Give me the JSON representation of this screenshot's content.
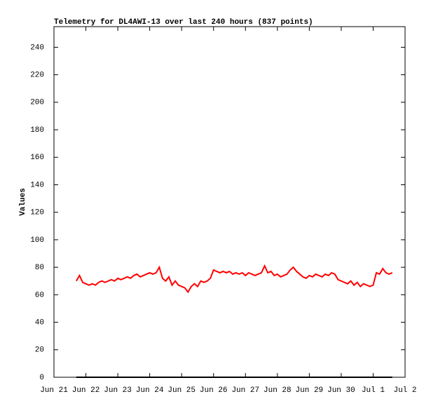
{
  "chart_data": {
    "type": "line",
    "title": "Telemetry for DL4AWI-13 over last 240 hours (837 points)",
    "y_label": "Values",
    "xlim": [
      0,
      11
    ],
    "ylim": [
      0,
      255
    ],
    "xticks": [
      {
        "value": 0,
        "label": "Jun 21"
      },
      {
        "value": 1,
        "label": "Jun 22"
      },
      {
        "value": 2,
        "label": "Jun 23"
      },
      {
        "value": 3,
        "label": "Jun 24"
      },
      {
        "value": 4,
        "label": "Jun 25"
      },
      {
        "value": 5,
        "label": "Jun 26"
      },
      {
        "value": 6,
        "label": "Jun 27"
      },
      {
        "value": 7,
        "label": "Jun 28"
      },
      {
        "value": 8,
        "label": "Jun 29"
      },
      {
        "value": 9,
        "label": "Jun 30"
      },
      {
        "value": 10,
        "label": "Jul 1"
      },
      {
        "value": 11,
        "label": "Jul 2"
      }
    ],
    "yticks": [
      0,
      20,
      40,
      60,
      80,
      100,
      120,
      140,
      160,
      180,
      200,
      220,
      240
    ],
    "grid": false,
    "series": [
      {
        "color": "#ff0000",
        "x": [
          0.7,
          0.8,
          0.9,
          1.0,
          1.1,
          1.2,
          1.3,
          1.4,
          1.5,
          1.6,
          1.7,
          1.8,
          1.9,
          2.0,
          2.1,
          2.2,
          2.3,
          2.4,
          2.5,
          2.6,
          2.7,
          2.8,
          2.9,
          3.0,
          3.1,
          3.2,
          3.3,
          3.4,
          3.5,
          3.6,
          3.7,
          3.8,
          3.9,
          4.0,
          4.1,
          4.2,
          4.3,
          4.4,
          4.5,
          4.6,
          4.7,
          4.8,
          4.9,
          5.0,
          5.1,
          5.2,
          5.3,
          5.4,
          5.5,
          5.6,
          5.7,
          5.8,
          5.9,
          6.0,
          6.1,
          6.2,
          6.3,
          6.4,
          6.5,
          6.6,
          6.7,
          6.8,
          6.9,
          7.0,
          7.1,
          7.2,
          7.3,
          7.4,
          7.5,
          7.6,
          7.7,
          7.8,
          7.9,
          8.0,
          8.1,
          8.2,
          8.3,
          8.4,
          8.5,
          8.6,
          8.7,
          8.8,
          8.9,
          9.0,
          9.1,
          9.2,
          9.3,
          9.4,
          9.5,
          9.6,
          9.7,
          9.8,
          9.9,
          10.0,
          10.1,
          10.2,
          10.3,
          10.4,
          10.5,
          10.6
        ],
        "values": [
          70,
          74,
          69,
          68,
          67,
          68,
          67,
          69,
          70,
          69,
          70,
          71,
          70,
          72,
          71,
          72,
          73,
          72,
          74,
          75,
          73,
          74,
          75,
          76,
          75,
          76,
          80,
          72,
          70,
          73,
          67,
          70,
          67,
          66,
          65,
          62,
          66,
          68,
          66,
          70,
          69,
          70,
          72,
          78,
          77,
          76,
          77,
          76,
          77,
          75,
          76,
          75,
          76,
          74,
          76,
          75,
          74,
          75,
          76,
          81,
          76,
          77,
          74,
          75,
          73,
          74,
          75,
          78,
          80,
          77,
          75,
          73,
          72,
          74,
          73,
          75,
          74,
          73,
          75,
          74,
          76,
          75,
          71,
          70,
          69,
          68,
          70,
          67,
          69,
          66,
          68,
          67,
          66,
          67,
          76,
          75,
          79,
          76,
          75,
          76
        ]
      },
      {
        "color": "#000000",
        "x": [
          0.7,
          10.6
        ],
        "values": [
          0,
          0
        ]
      }
    ]
  }
}
